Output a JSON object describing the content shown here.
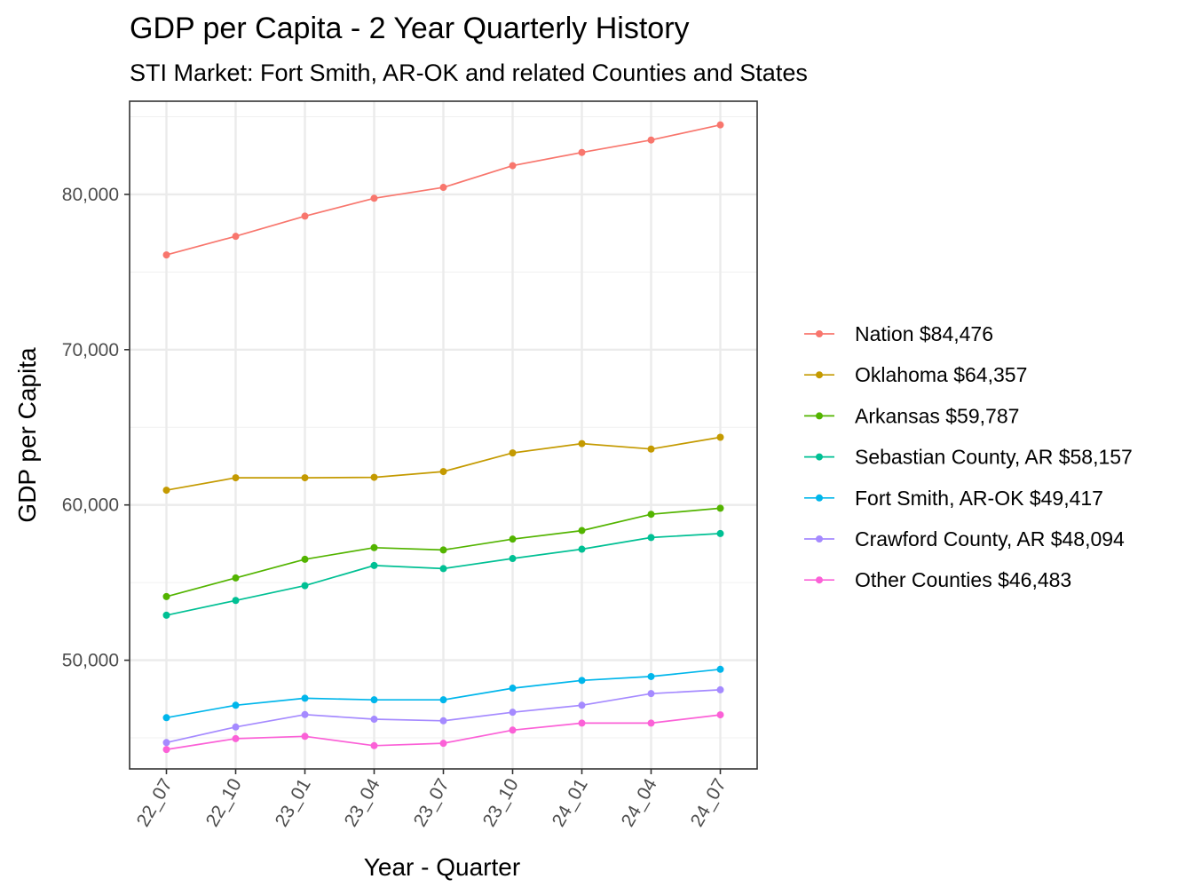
{
  "chart_data": {
    "type": "line",
    "title": "GDP per Capita - 2 Year Quarterly History",
    "subtitle": "STI Market: Fort Smith, AR-OK and related Counties and States",
    "xlabel": "Year - Quarter",
    "ylabel": "GDP per Capita",
    "categories": [
      "22_07",
      "22_10",
      "23_01",
      "23_04",
      "23_07",
      "23_10",
      "24_01",
      "24_04",
      "24_07"
    ],
    "ylim": [
      43000,
      86000
    ],
    "yticks": [
      50000,
      60000,
      70000,
      80000
    ],
    "ytick_labels": [
      "50,000",
      "60,000",
      "70,000",
      "80,000"
    ],
    "grid": true,
    "legend_position": "right",
    "series": [
      {
        "name": "Nation $84,476",
        "color": "#F8766D",
        "values": [
          76100,
          77300,
          78600,
          79750,
          80450,
          81850,
          82700,
          83500,
          84476
        ]
      },
      {
        "name": "Oklahoma $64,357",
        "color": "#C49A00",
        "values": [
          60950,
          61750,
          61750,
          61780,
          62150,
          63350,
          63950,
          63600,
          64357
        ]
      },
      {
        "name": "Arkansas $59,787",
        "color": "#53B400",
        "values": [
          54100,
          55300,
          56500,
          57250,
          57100,
          57800,
          58350,
          59400,
          59787
        ]
      },
      {
        "name": "Sebastian County, AR $58,157",
        "color": "#00C094",
        "values": [
          52900,
          53850,
          54800,
          56100,
          55900,
          56550,
          57150,
          57900,
          58157
        ]
      },
      {
        "name": "Fort Smith, AR-OK $49,417",
        "color": "#00B6EB",
        "values": [
          46300,
          47100,
          47550,
          47450,
          47450,
          48200,
          48700,
          48950,
          49417
        ]
      },
      {
        "name": "Crawford County, AR $48,094",
        "color": "#A58AFF",
        "values": [
          44700,
          45700,
          46500,
          46200,
          46100,
          46650,
          47100,
          47850,
          48094
        ]
      },
      {
        "name": "Other Counties $46,483",
        "color": "#FB61D7",
        "values": [
          44250,
          44950,
          45100,
          44500,
          44650,
          45500,
          45950,
          45950,
          46483
        ]
      }
    ]
  }
}
